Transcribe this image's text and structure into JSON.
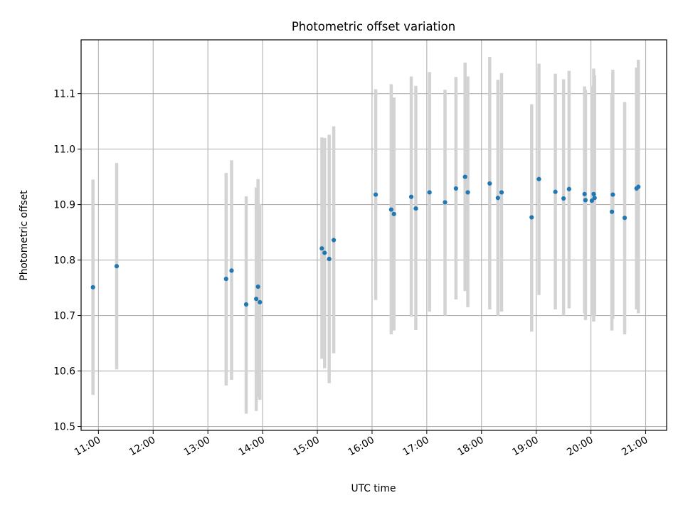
{
  "chart_data": {
    "type": "scatter",
    "title": "Photometric offset variation",
    "xlabel": "UTC time",
    "ylabel": "Photometric offset",
    "xlim": [
      "10:41",
      "21:23"
    ],
    "ylim": [
      10.493,
      11.197
    ],
    "x_ticks": [
      "11:00",
      "12:00",
      "13:00",
      "14:00",
      "15:00",
      "16:00",
      "17:00",
      "18:00",
      "19:00",
      "20:00",
      "21:00"
    ],
    "y_ticks": [
      "10.5",
      "10.6",
      "10.7",
      "10.8",
      "10.9",
      "11.0",
      "11.1"
    ],
    "grid": true,
    "errorbar_color": "#d3d3d3",
    "marker_color": "#1f77b4",
    "series": [
      {
        "x": [
          "10:54",
          "11:20",
          "13:20",
          "13:26",
          "13:42",
          "13:53",
          "13:55",
          "13:57",
          "15:05",
          "15:08",
          "15:13",
          "15:18",
          "16:04",
          "16:21",
          "16:24",
          "16:43",
          "16:48",
          "17:03",
          "17:20",
          "17:32",
          "17:42",
          "17:45",
          "18:09",
          "18:18",
          "18:22",
          "18:55",
          "19:03",
          "19:21",
          "19:30",
          "19:36",
          "19:53",
          "19:54",
          "20:01",
          "20:03",
          "20:04",
          "20:23",
          "20:24",
          "20:37",
          "20:50",
          "20:52"
        ],
        "y": [
          10.751,
          10.789,
          10.766,
          10.781,
          10.72,
          10.73,
          10.752,
          10.724,
          10.821,
          10.813,
          10.802,
          10.836,
          10.918,
          10.891,
          10.883,
          10.914,
          10.893,
          10.922,
          10.904,
          10.929,
          10.95,
          10.922,
          10.938,
          10.912,
          10.922,
          10.877,
          10.946,
          10.923,
          10.911,
          10.928,
          10.919,
          10.908,
          10.907,
          10.919,
          10.912,
          10.887,
          10.918,
          10.876,
          10.929,
          10.932
        ],
        "err_low": [
          10.557,
          10.603,
          10.574,
          10.584,
          10.523,
          10.528,
          10.553,
          10.548,
          10.622,
          10.605,
          10.578,
          10.632,
          10.728,
          10.666,
          10.673,
          10.698,
          10.674,
          10.707,
          10.7,
          10.729,
          10.744,
          10.715,
          10.711,
          10.7,
          10.707,
          10.671,
          10.737,
          10.711,
          10.7,
          10.713,
          10.704,
          10.692,
          10.699,
          10.689,
          10.7,
          10.673,
          10.694,
          10.666,
          10.711,
          10.704
        ],
        "err_high": [
          10.945,
          10.975,
          10.957,
          10.98,
          10.915,
          10.931,
          10.946,
          10.901,
          11.021,
          11.02,
          11.026,
          11.041,
          11.108,
          11.117,
          11.093,
          11.131,
          11.114,
          11.139,
          11.107,
          11.13,
          11.156,
          11.131,
          11.166,
          11.125,
          11.137,
          11.081,
          11.154,
          11.136,
          11.126,
          11.141,
          11.113,
          11.107,
          11.114,
          11.145,
          11.133,
          11.1,
          11.143,
          11.085,
          11.147,
          11.161
        ]
      }
    ]
  }
}
